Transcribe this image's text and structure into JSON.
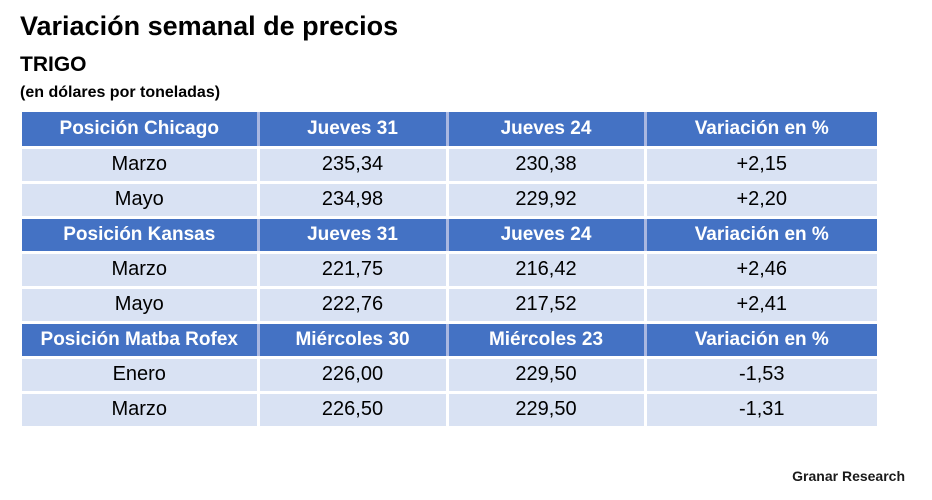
{
  "header": {
    "title": "Variación semanal de precios",
    "subtitle": "TRIGO",
    "unit_note": "(en dólares por toneladas)"
  },
  "footer": {
    "credit": "Granar Research"
  },
  "colors": {
    "header_bg": "#4472C4",
    "header_text": "#FFFFFF",
    "row_bg": "#D9E2F3",
    "header_divider": "#A9B7E1",
    "cell_gap": "#FFFFFF",
    "body_text": "#000000"
  },
  "table": {
    "sections": [
      {
        "header": [
          "Posición Chicago",
          "Jueves 31",
          "Jueves 24",
          "Variación en %"
        ],
        "rows": [
          [
            "Marzo",
            "235,34",
            "230,38",
            "+2,15"
          ],
          [
            "Mayo",
            "234,98",
            "229,92",
            "+2,20"
          ]
        ]
      },
      {
        "header": [
          "Posición Kansas",
          "Jueves 31",
          "Jueves 24",
          "Variación en %"
        ],
        "rows": [
          [
            "Marzo",
            "221,75",
            "216,42",
            "+2,46"
          ],
          [
            "Mayo",
            "222,76",
            "217,52",
            "+2,41"
          ]
        ]
      },
      {
        "header": [
          "Posición Matba Rofex",
          "Miércoles 30",
          "Miércoles 23",
          "Variación en %"
        ],
        "rows": [
          [
            "Enero",
            "226,00",
            "229,50",
            "-1,53"
          ],
          [
            "Marzo",
            "226,50",
            "229,50",
            "-1,31"
          ]
        ]
      }
    ]
  }
}
